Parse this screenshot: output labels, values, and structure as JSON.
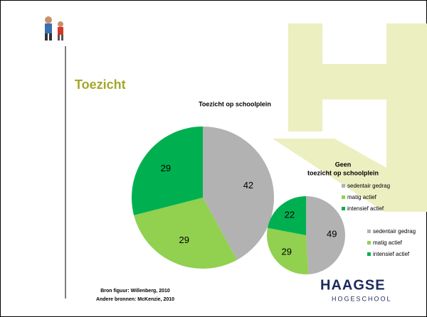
{
  "slide": {
    "heading": "Toezicht",
    "source_lines": [
      "Bron figuur: Willenberg, 2010",
      "Andere bronnen: McKenzie, 2010"
    ],
    "logo": {
      "name": "HAAGSE",
      "subtitle": "HOGESCHOOL"
    }
  },
  "chart_data": [
    {
      "type": "pie",
      "title": [
        "Toezicht op schoolplein"
      ],
      "categories": [
        "sedentair gedrag",
        "matig actief",
        "intensief actief"
      ],
      "values": [
        42,
        29,
        29
      ],
      "colors": [
        "#b2b2b2",
        "#92d050",
        "#00b050"
      ]
    },
    {
      "type": "pie",
      "title": [
        "Geen",
        "toezicht op schoolplein"
      ],
      "categories": [
        "sedentair gedrag",
        "matig actief",
        "intensief actief"
      ],
      "values": [
        49,
        29,
        22
      ],
      "colors": [
        "#b2b2b2",
        "#92d050",
        "#00b050"
      ]
    }
  ]
}
